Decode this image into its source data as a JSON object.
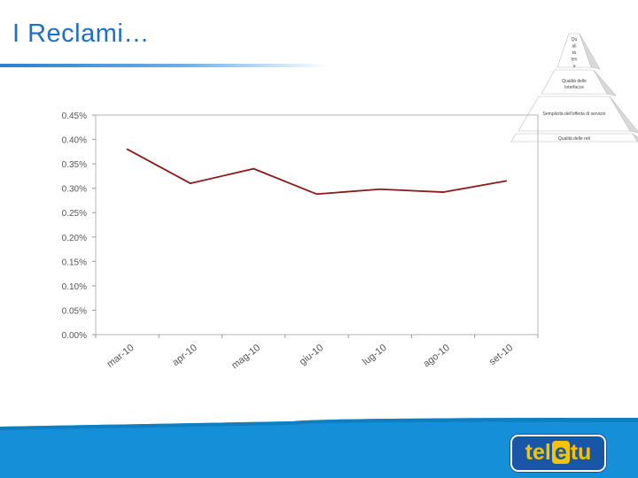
{
  "slide": {
    "title": "I Reclami…"
  },
  "pyramid": {
    "levels": [
      "Qu ali tà ten u",
      "Qualità delle Interfacce",
      "Semplicità dell'offerta di servizio",
      "Qualità delle reti"
    ]
  },
  "brand": {
    "logo_left": "tel",
    "logo_mid": "e",
    "logo_right": "tu",
    "accent": "#f5c400",
    "blue": "#1a56a8",
    "line_color": "#8b1a1a"
  },
  "chart_data": {
    "type": "line",
    "title": "",
    "xlabel": "",
    "ylabel": "",
    "categories": [
      "mar-10",
      "apr-10",
      "mag-10",
      "giu-10",
      "lug-10",
      "ago-10",
      "set-10"
    ],
    "series": [
      {
        "values": [
          0.0038,
          0.0031,
          0.0034,
          0.00288,
          0.00298,
          0.00292,
          0.00315
        ]
      }
    ],
    "ylim": [
      0,
      0.0045
    ],
    "yticks": [
      "0.00%",
      "0.05%",
      "0.10%",
      "0.15%",
      "0.20%",
      "0.25%",
      "0.30%",
      "0.35%",
      "0.40%",
      "0.45%"
    ],
    "grid": false,
    "legend": "none"
  }
}
